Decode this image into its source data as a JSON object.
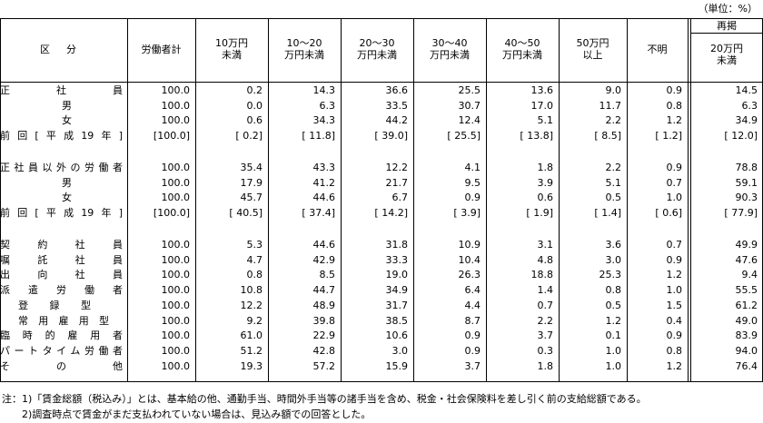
{
  "unit": "（単位：%）",
  "header": {
    "category": "区分",
    "columns": [
      "労働者計",
      "10万円\n未満",
      "10～20\n万円未満",
      "20～30\n万円未満",
      "30～40\n万円未満",
      "40～50\n万円未満",
      "50万円\n以上",
      "不明"
    ],
    "reprint": "再掲",
    "reprint_column": "20万円\n未満"
  },
  "groups": [
    [
      {
        "label": "正社員",
        "values": [
          "100.0",
          "0.2",
          "14.3",
          "36.6",
          "25.5",
          "13.6",
          "9.0",
          "0.9",
          "14.5"
        ]
      },
      {
        "label": "男",
        "values": [
          "100.0",
          "0.0",
          "6.3",
          "33.5",
          "30.7",
          "17.0",
          "11.7",
          "0.8",
          "6.3"
        ]
      },
      {
        "label": "女",
        "values": [
          "100.0",
          "0.6",
          "34.3",
          "44.2",
          "12.4",
          "5.1",
          "2.2",
          "1.2",
          "34.9"
        ]
      },
      {
        "label": "前回[平成19年]",
        "values": [
          "[100.0]",
          "[ 0.2]",
          "[ 11.8]",
          "[ 39.0]",
          "[ 25.5]",
          "[ 13.8]",
          "[ 8.5]",
          "[ 1.2]",
          "[ 12.0]"
        ]
      }
    ],
    [
      {
        "label": "正社員以外の労働者",
        "values": [
          "100.0",
          "35.4",
          "43.3",
          "12.2",
          "4.1",
          "1.8",
          "2.2",
          "0.9",
          "78.8"
        ]
      },
      {
        "label": "男",
        "values": [
          "100.0",
          "17.9",
          "41.2",
          "21.7",
          "9.5",
          "3.9",
          "5.1",
          "0.7",
          "59.1"
        ]
      },
      {
        "label": "女",
        "values": [
          "100.0",
          "45.7",
          "44.6",
          "6.7",
          "0.9",
          "0.6",
          "0.5",
          "1.0",
          "90.3"
        ]
      },
      {
        "label": "前回[平成19年]",
        "values": [
          "[100.0]",
          "[ 40.5]",
          "[ 37.4]",
          "[ 14.2]",
          "[ 3.9]",
          "[ 1.9]",
          "[ 1.4]",
          "[ 0.6]",
          "[ 77.9]"
        ]
      }
    ],
    [
      {
        "label": "契約社員",
        "values": [
          "100.0",
          "5.3",
          "44.6",
          "31.8",
          "10.9",
          "3.1",
          "3.6",
          "0.7",
          "49.9"
        ]
      },
      {
        "label": "嘱託社員",
        "values": [
          "100.0",
          "4.7",
          "42.9",
          "33.3",
          "10.4",
          "4.8",
          "3.0",
          "0.9",
          "47.6"
        ]
      },
      {
        "label": "出向社員",
        "values": [
          "100.0",
          "0.8",
          "8.5",
          "19.0",
          "26.3",
          "18.8",
          "25.3",
          "1.2",
          "9.4"
        ]
      },
      {
        "label": "派遣労働者",
        "values": [
          "100.0",
          "10.8",
          "44.7",
          "34.9",
          "6.4",
          "1.4",
          "0.8",
          "1.0",
          "55.5"
        ]
      },
      {
        "label": "登録型",
        "values": [
          "100.0",
          "12.2",
          "48.9",
          "31.7",
          "4.4",
          "0.7",
          "0.5",
          "1.5",
          "61.2"
        ]
      },
      {
        "label": "常用雇用型",
        "values": [
          "100.0",
          "9.2",
          "39.8",
          "38.5",
          "8.7",
          "2.2",
          "1.2",
          "0.4",
          "49.0"
        ]
      },
      {
        "label": "臨時的雇用者",
        "values": [
          "100.0",
          "61.0",
          "22.9",
          "10.6",
          "0.9",
          "3.7",
          "0.1",
          "0.9",
          "83.9"
        ]
      },
      {
        "label": "パートタイム労働者",
        "values": [
          "100.0",
          "51.2",
          "42.8",
          "3.0",
          "0.9",
          "0.3",
          "1.0",
          "0.8",
          "94.0"
        ]
      },
      {
        "label": "その他",
        "values": [
          "100.0",
          "19.3",
          "57.2",
          "15.9",
          "3.7",
          "1.8",
          "1.0",
          "1.2",
          "76.4"
        ]
      }
    ]
  ],
  "notes": [
    "注：1)「賃金総額（税込み）」とは、基本給の他、通勤手当、時間外手当等の諸手当を含め、税金・社会保険料を差し引く前の支給総額である。",
    "　　2)調査時点で賃金がまだ支払われていない場合は、見込み額での回答とした。"
  ]
}
